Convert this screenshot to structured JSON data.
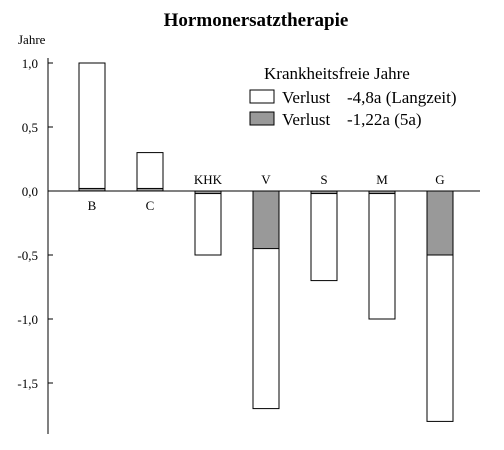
{
  "chart_data": {
    "type": "bar",
    "title": "Hormonersatztherapie",
    "ylabel": "Jahre",
    "xlabel": "",
    "ylim": [
      -1.9,
      1.05
    ],
    "yticks": [
      {
        "value": 1.0,
        "label": "1,0"
      },
      {
        "value": 0.5,
        "label": "0,5"
      },
      {
        "value": 0.0,
        "label": "0,0"
      },
      {
        "value": -0.5,
        "label": "-0,5"
      },
      {
        "value": -1.0,
        "label": "-1,0"
      },
      {
        "value": -1.5,
        "label": "-1,5"
      }
    ],
    "categories": [
      "B",
      "C",
      "KHK",
      "V",
      "S",
      "M",
      "G"
    ],
    "category_label_side": [
      "below",
      "below",
      "above",
      "above",
      "above",
      "above",
      "above"
    ],
    "series": [
      {
        "name": "Verlust -4,8a (Langzeit)",
        "color": "#ffffff",
        "values": [
          1.0,
          0.3,
          -0.5,
          -1.7,
          -0.7,
          -1.0,
          -1.8
        ]
      },
      {
        "name": "Verlust -1,22a (5a)",
        "color": "#999999",
        "values": [
          0.02,
          0.02,
          -0.02,
          -0.45,
          -0.02,
          -0.02,
          -0.5
        ]
      }
    ],
    "legend": {
      "title": "Krankheitsfreie Jahre",
      "placement": "top-right",
      "entries": [
        {
          "label": "Verlust",
          "value": "-4,8a (Langzeit)",
          "color": "#ffffff"
        },
        {
          "label": "Verlust",
          "value": "-1,22a (5a)",
          "color": "#999999"
        }
      ]
    },
    "grid": false
  }
}
